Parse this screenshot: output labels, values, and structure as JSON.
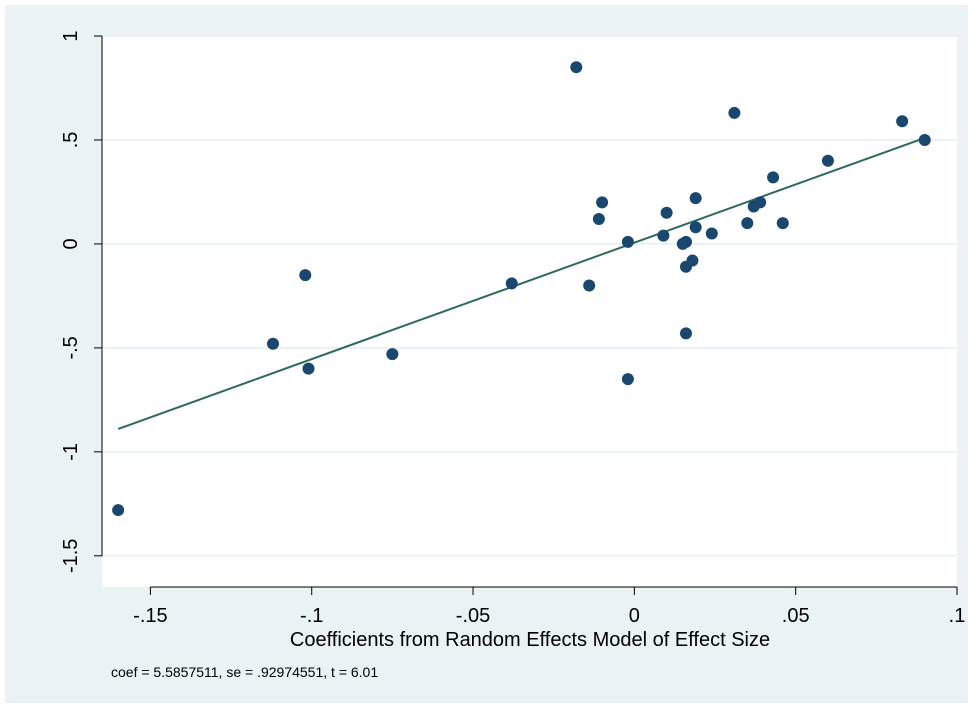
{
  "colors": {
    "outer_background": "#eaf2f3",
    "plot_background": "#ffffff",
    "gridline": "#eaf2f3",
    "marker": "#1a476f",
    "fit_line": "#2d6a5e",
    "axis": "#000000"
  },
  "chart_data": {
    "type": "scatter",
    "title": "",
    "xlabel": "Coefficients from Random Effects Model of Effect Size",
    "ylabel": "",
    "note": "coef = 5.5857511, se = .92974551, t = 6.01",
    "xlim": [
      -0.165,
      0.1
    ],
    "ylim": [
      -1.65,
      1.0
    ],
    "x_ticks": [
      -0.15,
      -0.1,
      -0.05,
      0,
      0.05,
      0.1
    ],
    "x_tick_labels": [
      "-.15",
      "-.1",
      "-.05",
      "0",
      ".05",
      ".1"
    ],
    "y_ticks": [
      -1.5,
      -1,
      -0.5,
      0,
      0.5,
      1
    ],
    "y_tick_labels": [
      "-1.5",
      "-1",
      "-.5",
      "0",
      ".5",
      "1"
    ],
    "grid": "horizontal",
    "legend": "none",
    "points": [
      {
        "x": -0.16,
        "y": -1.28
      },
      {
        "x": -0.112,
        "y": -0.48
      },
      {
        "x": -0.102,
        "y": -0.15
      },
      {
        "x": -0.101,
        "y": -0.6
      },
      {
        "x": -0.075,
        "y": -0.53
      },
      {
        "x": -0.038,
        "y": -0.19
      },
      {
        "x": -0.018,
        "y": 0.85
      },
      {
        "x": -0.014,
        "y": -0.2
      },
      {
        "x": -0.011,
        "y": 0.12
      },
      {
        "x": -0.01,
        "y": 0.2
      },
      {
        "x": -0.002,
        "y": -0.65
      },
      {
        "x": -0.002,
        "y": 0.01
      },
      {
        "x": 0.009,
        "y": 0.04
      },
      {
        "x": 0.01,
        "y": 0.15
      },
      {
        "x": 0.015,
        "y": 0.0
      },
      {
        "x": 0.016,
        "y": 0.01
      },
      {
        "x": 0.016,
        "y": -0.11
      },
      {
        "x": 0.016,
        "y": -0.43
      },
      {
        "x": 0.018,
        "y": -0.08
      },
      {
        "x": 0.019,
        "y": 0.08
      },
      {
        "x": 0.019,
        "y": 0.22
      },
      {
        "x": 0.024,
        "y": 0.05
      },
      {
        "x": 0.031,
        "y": 0.63
      },
      {
        "x": 0.035,
        "y": 0.1
      },
      {
        "x": 0.037,
        "y": 0.18
      },
      {
        "x": 0.039,
        "y": 0.2
      },
      {
        "x": 0.043,
        "y": 0.32
      },
      {
        "x": 0.046,
        "y": 0.1
      },
      {
        "x": 0.06,
        "y": 0.4
      },
      {
        "x": 0.083,
        "y": 0.59
      },
      {
        "x": 0.09,
        "y": 0.5
      }
    ],
    "fit_line": {
      "x": [
        -0.16,
        0.09
      ],
      "y": [
        -0.89,
        0.51
      ]
    }
  }
}
